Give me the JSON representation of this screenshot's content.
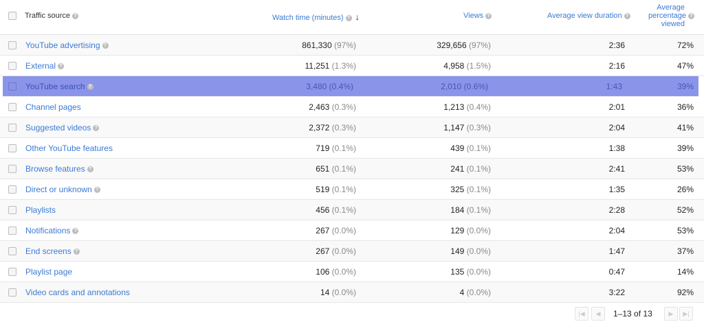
{
  "header": {
    "traffic_source": "Traffic source",
    "watch_time": "Watch time (minutes)",
    "views": "Views",
    "avg_view_duration": "Average view duration",
    "avg_pct_line1": "Average",
    "avg_pct_line2": "percentage",
    "avg_pct_line3": "viewed",
    "sort_icon": "↓",
    "help_icon": "?"
  },
  "rows": [
    {
      "name": "YouTube advertising",
      "help": true,
      "watch": "861,330",
      "watch_pct": "(97%)",
      "views": "329,656",
      "views_pct": "(97%)",
      "duration": "2:36",
      "percent": "72%"
    },
    {
      "name": "External",
      "help": true,
      "watch": "11,251",
      "watch_pct": "(1.3%)",
      "views": "4,958",
      "views_pct": "(1.5%)",
      "duration": "2:16",
      "percent": "47%"
    },
    {
      "name": "YouTube search",
      "help": true,
      "watch": "3,480",
      "watch_pct": "(0.4%)",
      "views": "2,010",
      "views_pct": "(0.6%)",
      "duration": "1:43",
      "percent": "39%",
      "selected": true
    },
    {
      "name": "Channel pages",
      "help": false,
      "watch": "2,463",
      "watch_pct": "(0.3%)",
      "views": "1,213",
      "views_pct": "(0.4%)",
      "duration": "2:01",
      "percent": "36%"
    },
    {
      "name": "Suggested videos",
      "help": true,
      "watch": "2,372",
      "watch_pct": "(0.3%)",
      "views": "1,147",
      "views_pct": "(0.3%)",
      "duration": "2:04",
      "percent": "41%"
    },
    {
      "name": "Other YouTube features",
      "help": false,
      "watch": "719",
      "watch_pct": "(0.1%)",
      "views": "439",
      "views_pct": "(0.1%)",
      "duration": "1:38",
      "percent": "39%"
    },
    {
      "name": "Browse features",
      "help": true,
      "watch": "651",
      "watch_pct": "(0.1%)",
      "views": "241",
      "views_pct": "(0.1%)",
      "duration": "2:41",
      "percent": "53%"
    },
    {
      "name": "Direct or unknown",
      "help": true,
      "watch": "519",
      "watch_pct": "(0.1%)",
      "views": "325",
      "views_pct": "(0.1%)",
      "duration": "1:35",
      "percent": "26%"
    },
    {
      "name": "Playlists",
      "help": false,
      "watch": "456",
      "watch_pct": "(0.1%)",
      "views": "184",
      "views_pct": "(0.1%)",
      "duration": "2:28",
      "percent": "52%"
    },
    {
      "name": "Notifications",
      "help": true,
      "watch": "267",
      "watch_pct": "(0.0%)",
      "views": "129",
      "views_pct": "(0.0%)",
      "duration": "2:04",
      "percent": "53%"
    },
    {
      "name": "End screens",
      "help": true,
      "watch": "267",
      "watch_pct": "(0.0%)",
      "views": "149",
      "views_pct": "(0.0%)",
      "duration": "1:47",
      "percent": "37%"
    },
    {
      "name": "Playlist page",
      "help": false,
      "watch": "106",
      "watch_pct": "(0.0%)",
      "views": "135",
      "views_pct": "(0.0%)",
      "duration": "0:47",
      "percent": "14%"
    },
    {
      "name": "Video cards and annotations",
      "help": false,
      "watch": "14",
      "watch_pct": "(0.0%)",
      "views": "4",
      "views_pct": "(0.0%)",
      "duration": "3:22",
      "percent": "92%"
    }
  ],
  "pagination": {
    "range": "1–13 of",
    "total": "13",
    "first_icon": "|◀",
    "prev_icon": "◀",
    "next_icon": "▶",
    "last_icon": "▶|"
  },
  "colors": {
    "link": "#3b7bd4",
    "selected_row": "#8a95ea"
  }
}
